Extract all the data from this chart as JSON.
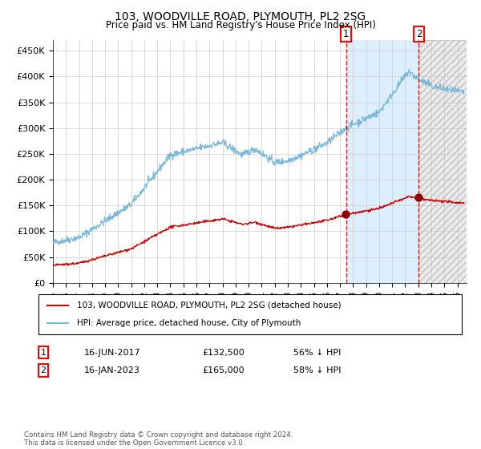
{
  "title": "103, WOODVILLE ROAD, PLYMOUTH, PL2 2SG",
  "subtitle": "Price paid vs. HM Land Registry's House Price Index (HPI)",
  "ylabel_ticks": [
    "£0",
    "£50K",
    "£100K",
    "£150K",
    "£200K",
    "£250K",
    "£300K",
    "£350K",
    "£400K",
    "£450K"
  ],
  "ytick_values": [
    0,
    50000,
    100000,
    150000,
    200000,
    250000,
    300000,
    350000,
    400000,
    450000
  ],
  "ylim": [
    0,
    470000
  ],
  "xlim_start": 1995.0,
  "xlim_end": 2026.7,
  "hpi_color": "#7ab8d9",
  "price_color": "#cc0000",
  "marker_color": "#8b0000",
  "sale1_year": 2017.458,
  "sale1_price": 132500,
  "sale2_year": 2023.042,
  "sale2_price": 165000,
  "sale1_label": "1",
  "sale2_label": "2",
  "legend_price_label": "103, WOODVILLE ROAD, PLYMOUTH, PL2 2SG (detached house)",
  "legend_hpi_label": "HPI: Average price, detached house, City of Plymouth",
  "annotation1_date": "16-JUN-2017",
  "annotation1_price": "£132,500",
  "annotation1_hpi": "56% ↓ HPI",
  "annotation2_date": "16-JAN-2023",
  "annotation2_price": "£165,000",
  "annotation2_hpi": "58% ↓ HPI",
  "copyright_text": "Contains HM Land Registry data © Crown copyright and database right 2024.\nThis data is licensed under the Open Government Licence v3.0.",
  "background_color": "#ffffff",
  "shaded_region_color": "#ddeeff",
  "grid_color": "#cccccc",
  "hatch_color": "#d8d8d8"
}
